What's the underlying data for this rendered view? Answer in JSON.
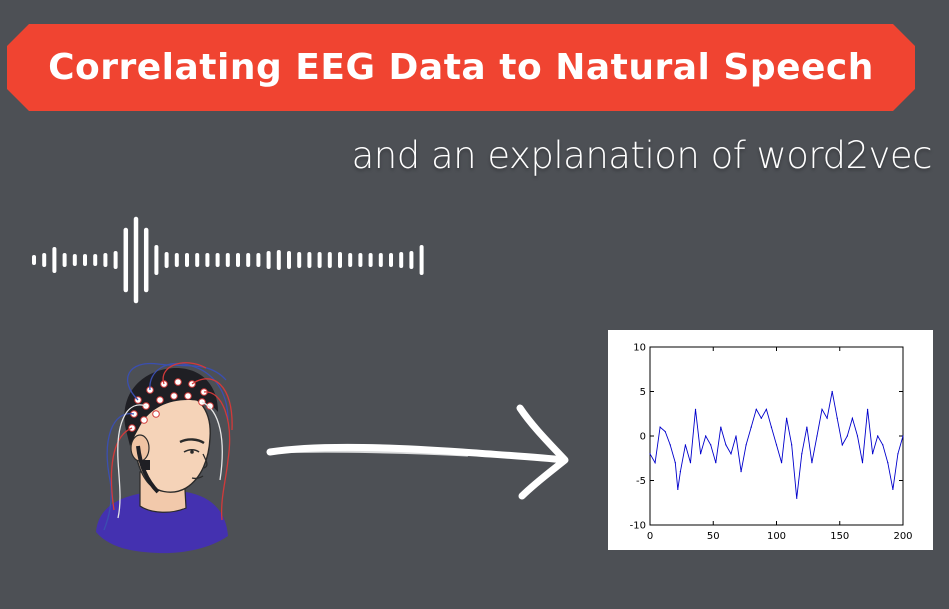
{
  "title": "Correlating EEG Data to Natural Speech",
  "subtitle": "and an explanation of word2vec",
  "colors": {
    "background": "#4d5055",
    "banner": "#f04431",
    "waveform": "#ffffff",
    "signal_line": "#0000cc",
    "cap_blue_wires": "#3b4fb0",
    "cap_red_wires": "#d23a3a",
    "shirt": "#4431b0"
  },
  "icons": {
    "waveform": "audio-waveform-icon",
    "head": "eeg-cap-head-illustration",
    "arrow": "hand-drawn-arrow-icon"
  },
  "chart_data": {
    "type": "line",
    "title": "",
    "xlabel": "",
    "ylabel": "",
    "xlim": [
      0,
      200
    ],
    "ylim": [
      -10,
      10
    ],
    "xticks": [
      0,
      50,
      100,
      150,
      200
    ],
    "yticks": [
      10,
      5,
      0,
      -5,
      -10
    ],
    "grid": false,
    "series": [
      {
        "color": "#0000cc",
        "x": [
          0,
          4,
          8,
          12,
          16,
          20,
          22,
          24,
          28,
          32,
          36,
          40,
          44,
          48,
          52,
          56,
          60,
          64,
          68,
          72,
          76,
          80,
          84,
          88,
          92,
          96,
          100,
          104,
          108,
          112,
          116,
          120,
          124,
          128,
          132,
          136,
          140,
          144,
          148,
          152,
          156,
          160,
          164,
          168,
          172,
          176,
          180,
          184,
          188,
          192,
          196,
          200
        ],
        "y": [
          -2,
          -3,
          1,
          0.5,
          -1,
          -3,
          -6,
          -4,
          -1,
          -3,
          3,
          -2,
          0,
          -1,
          -3,
          1,
          -1,
          -2,
          0,
          -4,
          -1,
          1,
          3,
          2,
          3,
          1,
          -1,
          -3,
          2,
          -1,
          -7,
          -2,
          1,
          -3,
          0,
          3,
          2,
          5,
          2,
          -1,
          0,
          2,
          0,
          -3,
          3,
          -2,
          0,
          -1,
          -3,
          -6,
          -2,
          0
        ]
      }
    ]
  }
}
